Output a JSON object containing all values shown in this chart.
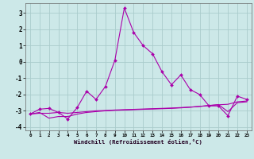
{
  "xlabel": "Windchill (Refroidissement éolien,°C)",
  "bg_color": "#cce8e8",
  "grid_color": "#aacccc",
  "line_color": "#aa00aa",
  "x": [
    0,
    1,
    2,
    3,
    4,
    5,
    6,
    7,
    8,
    9,
    10,
    11,
    12,
    13,
    14,
    15,
    16,
    17,
    18,
    19,
    20,
    21,
    22,
    23
  ],
  "line1": [
    -3.2,
    -2.9,
    -2.85,
    -3.1,
    -3.5,
    -2.8,
    -1.8,
    -2.3,
    -1.5,
    0.1,
    3.3,
    1.8,
    1.0,
    0.5,
    -0.6,
    -1.4,
    -0.8,
    -1.7,
    -2.0,
    -2.7,
    -2.7,
    -3.3,
    -2.1,
    -2.3
  ],
  "line2": [
    -3.2,
    -3.15,
    -3.15,
    -3.1,
    -3.15,
    -3.1,
    -3.05,
    -3.0,
    -2.98,
    -2.95,
    -2.93,
    -2.91,
    -2.89,
    -2.87,
    -2.85,
    -2.83,
    -2.8,
    -2.77,
    -2.73,
    -2.68,
    -2.63,
    -2.6,
    -2.45,
    -2.4
  ],
  "line3": [
    -3.2,
    -3.1,
    -3.45,
    -3.35,
    -3.35,
    -3.2,
    -3.1,
    -3.05,
    -3.0,
    -2.97,
    -2.95,
    -2.93,
    -2.91,
    -2.89,
    -2.87,
    -2.85,
    -2.82,
    -2.78,
    -2.73,
    -2.67,
    -2.62,
    -3.05,
    -2.5,
    -2.45
  ],
  "ylim": [
    -4.2,
    3.6
  ],
  "yticks": [
    -4,
    -3,
    -2,
    -1,
    0,
    1,
    2,
    3
  ],
  "xlim": [
    -0.5,
    23.5
  ],
  "xticks": [
    0,
    1,
    2,
    3,
    4,
    5,
    6,
    7,
    8,
    9,
    10,
    11,
    12,
    13,
    14,
    15,
    16,
    17,
    18,
    19,
    20,
    21,
    22,
    23
  ]
}
